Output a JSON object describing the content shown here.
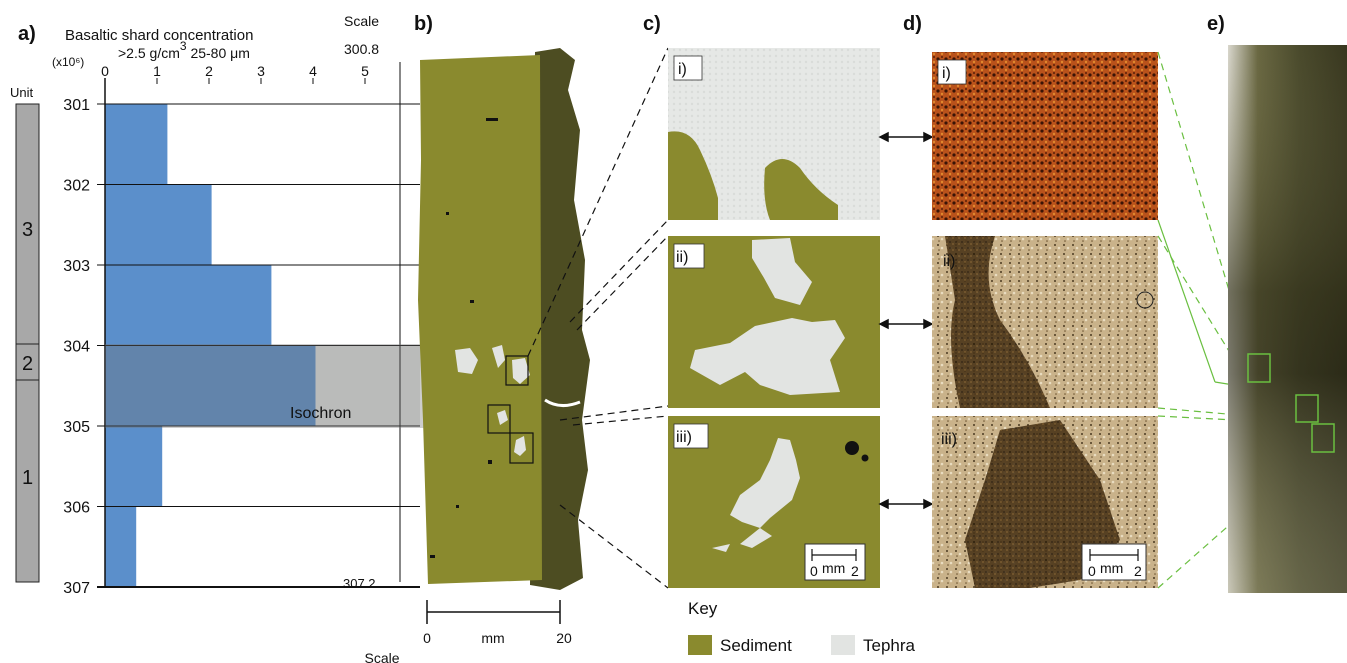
{
  "panels": {
    "a": "a)",
    "b": "b)",
    "c": "c)",
    "d": "d)",
    "e": "e)"
  },
  "panel_a": {
    "title": "Basaltic shard concentration",
    "subtitle_density": ">2.5 g/cm",
    "subtitle_density_sup": "3",
    "subtitle_size": " 25-80 μm",
    "x_unit_label": "(x10⁶)",
    "unit_label": "Unit",
    "isochron_label": "Isochron",
    "units": [
      "3",
      "2",
      "1"
    ]
  },
  "panel_b": {
    "scale_top_label": "Scale",
    "scale_top_value": "300.8",
    "scale_bottom_value": "307.2",
    "mm_scale": {
      "ticks": [
        "0",
        "20"
      ],
      "unit": "mm",
      "label": "Scale"
    }
  },
  "panel_c": {
    "subpanels": [
      "i)",
      "ii)",
      "iii)"
    ],
    "scalebar": {
      "left": "0",
      "unit": "mm",
      "right": "2"
    }
  },
  "panel_d": {
    "subpanels": [
      "i)",
      "ii)",
      "iii)"
    ],
    "scalebar": {
      "left": "0",
      "unit": "mm",
      "right": "2"
    }
  },
  "key": {
    "title": "Key",
    "items": [
      {
        "label": "Sediment",
        "color": "#8a8a2e"
      },
      {
        "label": "Tephra",
        "color": "#e2e4e2"
      }
    ]
  },
  "colors": {
    "bar": "#5b8fcb",
    "sediment": "#8a8a2e",
    "tephra": "#e2e4e2",
    "isochron_band": "#6f6f6f",
    "zoom_lines": "#6abf40"
  },
  "chart_data": {
    "type": "bar",
    "orientation": "horizontal",
    "title": "Basaltic shard concentration",
    "xlabel": ">2.5 g/cm3 25-80 μm (x10⁶)",
    "ylabel": "",
    "x_ticks": [
      0,
      1,
      2,
      3,
      4,
      5
    ],
    "y_ticks": [
      301,
      302,
      303,
      304,
      305,
      306,
      307
    ],
    "xlim": [
      0,
      5.5
    ],
    "ylim": [
      301,
      307
    ],
    "depth_bins": [
      {
        "from": 301,
        "to": 302,
        "value": 1.2
      },
      {
        "from": 302,
        "to": 303,
        "value": 2.05
      },
      {
        "from": 303,
        "to": 304,
        "value": 3.2
      },
      {
        "from": 304,
        "to": 305,
        "value": 4.05
      },
      {
        "from": 305,
        "to": 306,
        "value": 1.1
      },
      {
        "from": 306,
        "to": 307,
        "value": 0.6
      }
    ]
  }
}
